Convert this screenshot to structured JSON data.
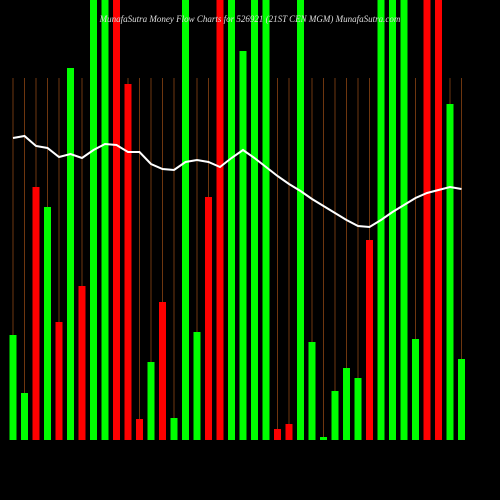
{
  "chart_data": {
    "type": "bar",
    "title": "MunafaSutra  Money Flow  Charts for 526921           (21ST CEN MGM) MunafaSutra.com",
    "categories": [
      null,
      null,
      null,
      null,
      null,
      null,
      null,
      null,
      null,
      null,
      null,
      null,
      null,
      null,
      null,
      null,
      null,
      null,
      null,
      null,
      null,
      null,
      null,
      null,
      null,
      null,
      null,
      null,
      null,
      null,
      null,
      null,
      null,
      null,
      null,
      null,
      null,
      null,
      null,
      null
    ],
    "series": [
      {
        "type": "bar",
        "values": [
          105,
          47,
          253,
          233,
          118,
          372,
          154,
          450,
          450,
          450,
          356,
          21,
          78,
          138,
          22,
          450,
          108,
          243,
          450,
          450,
          389,
          450,
          450,
          11,
          16,
          450,
          98,
          3,
          49,
          72,
          62,
          200,
          450,
          450,
          450,
          101,
          450,
          450,
          336,
          81
        ],
        "colors": [
          "#00ff00",
          "#00ff00",
          "#ff0000",
          "#00ff00",
          "#ff0000",
          "#00ff00",
          "#ff0000",
          "#00ff00",
          "#00ff00",
          "#ff0000",
          "#ff0000",
          "#ff0000",
          "#00ff00",
          "#ff0000",
          "#00ff00",
          "#00ff00",
          "#00ff00",
          "#ff0000",
          "#ff0000",
          "#00ff00",
          "#00ff00",
          "#00ff00",
          "#00ff00",
          "#ff0000",
          "#ff0000",
          "#00ff00",
          "#00ff00",
          "#00ff00",
          "#00ff00",
          "#00ff00",
          "#00ff00",
          "#ff0000",
          "#00ff00",
          "#00ff00",
          "#00ff00",
          "#00ff00",
          "#ff0000",
          "#ff0000",
          "#00ff00",
          "#00ff00"
        ]
      },
      {
        "type": "line",
        "color": "#ffffff",
        "values": [
          302,
          304,
          294,
          292,
          283,
          286,
          282,
          290,
          296,
          295,
          288,
          288,
          276,
          271,
          270,
          278,
          280,
          278,
          273,
          282,
          290,
          282,
          273,
          264,
          256,
          249,
          241,
          234,
          227,
          220,
          214,
          213,
          220,
          228,
          235,
          242,
          247,
          250,
          253,
          251
        ]
      }
    ],
    "ylim": [
      0,
      440
    ],
    "grid_color": "#8b4513"
  }
}
